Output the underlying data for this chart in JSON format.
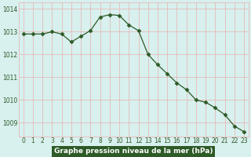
{
  "x": [
    0,
    1,
    2,
    3,
    4,
    5,
    6,
    7,
    8,
    9,
    10,
    11,
    12,
    13,
    14,
    15,
    16,
    17,
    18,
    19,
    20,
    21,
    22,
    23
  ],
  "y": [
    1012.9,
    1012.9,
    1012.9,
    1013.0,
    1012.9,
    1012.55,
    1012.8,
    1013.05,
    1013.65,
    1013.75,
    1013.72,
    1013.3,
    1013.05,
    1012.0,
    1011.55,
    1011.15,
    1010.75,
    1010.45,
    1010.0,
    1009.9,
    1009.65,
    1009.35,
    1008.85,
    1008.6
  ],
  "line_color": "#2d5a27",
  "marker": "D",
  "marker_size": 2.5,
  "bg_color": "#d8f0ee",
  "grid_color": "#e8b0b0",
  "tick_label_color": "#2d5a27",
  "xlabel": "Graphe pression niveau de la mer (hPa)",
  "ylim": [
    1008.4,
    1014.3
  ],
  "xlim": [
    -0.5,
    23.5
  ],
  "yticks": [
    1009,
    1010,
    1011,
    1012,
    1013,
    1014
  ],
  "xticks": [
    0,
    1,
    2,
    3,
    4,
    5,
    6,
    7,
    8,
    9,
    10,
    11,
    12,
    13,
    14,
    15,
    16,
    17,
    18,
    19,
    20,
    21,
    22,
    23
  ],
  "xtick_labels": [
    "0",
    "1",
    "2",
    "3",
    "4",
    "5",
    "6",
    "7",
    "8",
    "9",
    "10",
    "11",
    "12",
    "13",
    "14",
    "15",
    "16",
    "17",
    "18",
    "19",
    "20",
    "21",
    "22",
    "23"
  ],
  "xlabel_bg_color": "#2d5a27",
  "xlabel_text_color": "#ffffff",
  "xlabel_fontsize": 6.5,
  "tick_fontsize": 5.5,
  "ytick_fontsize": 5.5
}
